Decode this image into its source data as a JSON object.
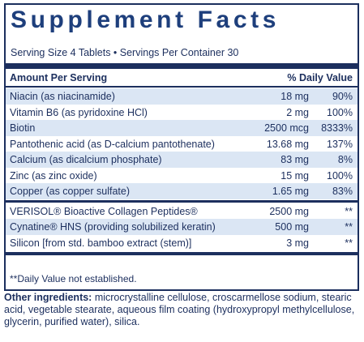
{
  "header": {
    "title": "Supplement Facts",
    "serving": "Serving Size 4 Tablets • Servings Per Container 30"
  },
  "table": {
    "columns": [
      "Amount Per Serving",
      "% Daily Value"
    ],
    "rows": [
      [
        "Niacin (as niacinamide)",
        "18 mg",
        "90%"
      ],
      [
        "Vitamin B6 (as pyridoxine HCl)",
        "2 mg",
        "100%"
      ],
      [
        "Biotin",
        "2500 mcg",
        "8333%"
      ],
      [
        "Pantothenic acid (as D-calcium pantothenate)",
        "13.68 mg",
        "137%"
      ],
      [
        "Calcium (as dicalcium phosphate)",
        "83 mg",
        "8%"
      ],
      [
        "Zinc (as zinc oxide)",
        "15 mg",
        "100%"
      ],
      [
        "Copper (as copper sulfate)",
        "1.65 mg",
        "83%"
      ],
      [
        "VERISOL® Bioactive Collagen Peptides®",
        "2500 mg",
        "**"
      ],
      [
        "Cynatine® HNS (providing solubilized keratin)",
        "500 mg",
        "**"
      ],
      [
        "Silicon [from std. bamboo extract (stem)]",
        "3 mg",
        "**"
      ]
    ]
  },
  "footnote": "**Daily Value not established.",
  "other_ingredients": {
    "label": "Other ingredients:",
    "text": "microcrystalline cellulose, croscarmellose sodium, stearic acid, vegetable stearate, aqueous film coating (hydroxypropyl methylcellulose, glycerin, purified water), silica."
  }
}
